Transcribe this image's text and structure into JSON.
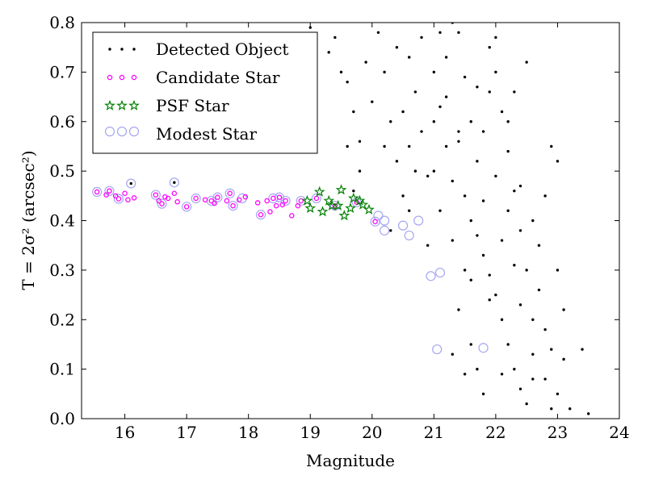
{
  "chart_data": {
    "type": "scatter",
    "xlabel": "Magnitude",
    "ylabel": "T = 2σ² (arcsec²)",
    "xlim": [
      15.3,
      24
    ],
    "ylim": [
      0.0,
      0.8
    ],
    "xticks": [
      16,
      17,
      18,
      19,
      20,
      21,
      22,
      23,
      24
    ],
    "yticks": [
      0.0,
      0.1,
      0.2,
      0.3,
      0.4,
      0.5,
      0.6,
      0.7,
      0.8
    ],
    "grid": false,
    "legend_position": "top-left",
    "colors": {
      "detected": "#000000",
      "candidate": "#ff00ff",
      "psf": "#008000",
      "modest": "#a6a6f2"
    },
    "series": [
      {
        "name": "Detected Object",
        "key": "detected",
        "marker": "dot",
        "points": [
          [
            16.1,
            0.475
          ],
          [
            16.8,
            0.477
          ],
          [
            19.0,
            0.79
          ],
          [
            19.3,
            0.74
          ],
          [
            19.4,
            0.77
          ],
          [
            19.5,
            0.7
          ],
          [
            19.6,
            0.68
          ],
          [
            19.7,
            0.62
          ],
          [
            19.8,
            0.56
          ],
          [
            19.9,
            0.72
          ],
          [
            20.0,
            0.64
          ],
          [
            19.8,
            0.5
          ],
          [
            19.6,
            0.55
          ],
          [
            19.7,
            0.46
          ],
          [
            20.1,
            0.78
          ],
          [
            20.2,
            0.7
          ],
          [
            20.3,
            0.6
          ],
          [
            20.4,
            0.52
          ],
          [
            20.5,
            0.45
          ],
          [
            20.6,
            0.73
          ],
          [
            20.7,
            0.66
          ],
          [
            20.8,
            0.58
          ],
          [
            20.9,
            0.49
          ],
          [
            20.4,
            0.75
          ],
          [
            20.6,
            0.42
          ],
          [
            20.2,
            0.55
          ],
          [
            20.5,
            0.62
          ],
          [
            20.8,
            0.77
          ],
          [
            21.0,
            0.7
          ],
          [
            21.1,
            0.63
          ],
          [
            21.2,
            0.55
          ],
          [
            21.3,
            0.48
          ],
          [
            21.4,
            0.78
          ],
          [
            21.5,
            0.69
          ],
          [
            21.6,
            0.6
          ],
          [
            21.7,
            0.52
          ],
          [
            21.8,
            0.44
          ],
          [
            21.9,
            0.75
          ],
          [
            21.1,
            0.42
          ],
          [
            21.3,
            0.36
          ],
          [
            21.5,
            0.3
          ],
          [
            21.4,
            0.22
          ],
          [
            21.6,
            0.15
          ],
          [
            21.7,
            0.1
          ],
          [
            21.9,
            0.66
          ],
          [
            21.2,
            0.73
          ],
          [
            21.4,
            0.58
          ],
          [
            21.6,
            0.4
          ],
          [
            21.8,
            0.33
          ],
          [
            21.0,
            0.5
          ],
          [
            21.2,
            0.65
          ],
          [
            21.3,
            0.8
          ],
          [
            21.5,
            0.45
          ],
          [
            21.7,
            0.37
          ],
          [
            21.9,
            0.29
          ],
          [
            21.8,
            0.58
          ],
          [
            22.0,
            0.7
          ],
          [
            22.1,
            0.62
          ],
          [
            22.2,
            0.54
          ],
          [
            22.3,
            0.46
          ],
          [
            22.4,
            0.38
          ],
          [
            22.5,
            0.3
          ],
          [
            22.0,
            0.25
          ],
          [
            22.1,
            0.2
          ],
          [
            22.2,
            0.15
          ],
          [
            22.3,
            0.1
          ],
          [
            22.4,
            0.06
          ],
          [
            22.5,
            0.03
          ],
          [
            22.6,
            0.2
          ],
          [
            22.7,
            0.35
          ],
          [
            22.8,
            0.45
          ],
          [
            22.9,
            0.55
          ],
          [
            23.0,
            0.52
          ],
          [
            23.1,
            0.22
          ],
          [
            22.9,
            0.14
          ],
          [
            23.0,
            0.05
          ],
          [
            23.2,
            0.02
          ],
          [
            23.4,
            0.14
          ],
          [
            23.5,
            0.01
          ],
          [
            22.6,
            0.08
          ],
          [
            22.8,
            0.18
          ],
          [
            22.4,
            0.47
          ],
          [
            22.6,
            0.4
          ],
          [
            22.2,
            0.6
          ],
          [
            22.3,
            0.66
          ],
          [
            22.0,
            0.77
          ],
          [
            22.5,
            0.72
          ],
          [
            22.1,
            0.36
          ],
          [
            22.7,
            0.26
          ],
          [
            23.0,
            0.3
          ],
          [
            22.9,
            0.02
          ],
          [
            23.1,
            0.12
          ],
          [
            22.3,
            0.31
          ],
          [
            21.9,
            0.24
          ],
          [
            21.6,
            0.28
          ],
          [
            22.0,
            0.49
          ],
          [
            21.4,
            0.56
          ],
          [
            21.7,
            0.67
          ],
          [
            20.3,
            0.38
          ],
          [
            20.9,
            0.35
          ],
          [
            21.0,
            0.6
          ],
          [
            21.1,
            0.78
          ],
          [
            20.7,
            0.5
          ],
          [
            20.6,
            0.55
          ],
          [
            21.8,
            0.05
          ],
          [
            22.1,
            0.09
          ],
          [
            22.2,
            0.42
          ],
          [
            22.4,
            0.23
          ],
          [
            21.5,
            0.09
          ],
          [
            21.3,
            0.13
          ],
          [
            22.6,
            0.13
          ],
          [
            22.8,
            0.08
          ]
        ]
      },
      {
        "name": "Candidate Star",
        "key": "candidate",
        "marker": "ring",
        "points": [
          [
            15.55,
            0.458
          ],
          [
            15.7,
            0.452
          ],
          [
            15.75,
            0.46
          ],
          [
            15.85,
            0.45
          ],
          [
            15.9,
            0.444
          ],
          [
            16.0,
            0.455
          ],
          [
            16.05,
            0.442
          ],
          [
            16.15,
            0.446
          ],
          [
            16.5,
            0.452
          ],
          [
            16.55,
            0.44
          ],
          [
            16.6,
            0.434
          ],
          [
            16.65,
            0.448
          ],
          [
            16.7,
            0.445
          ],
          [
            16.8,
            0.455
          ],
          [
            16.85,
            0.438
          ],
          [
            17.0,
            0.428
          ],
          [
            17.15,
            0.445
          ],
          [
            17.3,
            0.442
          ],
          [
            17.4,
            0.44
          ],
          [
            17.45,
            0.435
          ],
          [
            17.5,
            0.447
          ],
          [
            17.65,
            0.44
          ],
          [
            17.7,
            0.455
          ],
          [
            17.75,
            0.43
          ],
          [
            17.85,
            0.442
          ],
          [
            17.95,
            0.448
          ],
          [
            18.15,
            0.436
          ],
          [
            18.2,
            0.412
          ],
          [
            18.3,
            0.44
          ],
          [
            18.35,
            0.418
          ],
          [
            18.4,
            0.445
          ],
          [
            18.45,
            0.43
          ],
          [
            18.5,
            0.447
          ],
          [
            18.55,
            0.432
          ],
          [
            18.6,
            0.44
          ],
          [
            18.7,
            0.41
          ],
          [
            18.8,
            0.43
          ],
          [
            18.85,
            0.44
          ],
          [
            19.1,
            0.445
          ],
          [
            19.4,
            0.43
          ],
          [
            19.75,
            0.437
          ],
          [
            20.05,
            0.398
          ]
        ]
      },
      {
        "name": "PSF Star",
        "key": "psf",
        "marker": "star",
        "points": [
          [
            18.95,
            0.44
          ],
          [
            19.0,
            0.425
          ],
          [
            19.15,
            0.458
          ],
          [
            19.2,
            0.418
          ],
          [
            19.3,
            0.44
          ],
          [
            19.35,
            0.43
          ],
          [
            19.45,
            0.43
          ],
          [
            19.5,
            0.462
          ],
          [
            19.55,
            0.41
          ],
          [
            19.65,
            0.425
          ],
          [
            19.7,
            0.445
          ],
          [
            19.8,
            0.44
          ],
          [
            19.85,
            0.432
          ],
          [
            19.95,
            0.422
          ]
        ]
      },
      {
        "name": "Modest Star",
        "key": "modest",
        "marker": "circle",
        "points": [
          [
            15.55,
            0.458
          ],
          [
            15.75,
            0.46
          ],
          [
            15.9,
            0.444
          ],
          [
            16.1,
            0.475
          ],
          [
            16.5,
            0.452
          ],
          [
            16.6,
            0.434
          ],
          [
            16.8,
            0.477
          ],
          [
            17.0,
            0.428
          ],
          [
            17.15,
            0.445
          ],
          [
            17.4,
            0.44
          ],
          [
            17.5,
            0.447
          ],
          [
            17.7,
            0.455
          ],
          [
            17.75,
            0.43
          ],
          [
            17.9,
            0.445
          ],
          [
            18.2,
            0.412
          ],
          [
            18.4,
            0.445
          ],
          [
            18.5,
            0.447
          ],
          [
            18.6,
            0.44
          ],
          [
            18.85,
            0.44
          ],
          [
            19.1,
            0.445
          ],
          [
            19.4,
            0.43
          ],
          [
            19.75,
            0.437
          ],
          [
            20.05,
            0.398
          ],
          [
            20.1,
            0.41
          ],
          [
            20.2,
            0.38
          ],
          [
            20.2,
            0.4
          ],
          [
            20.5,
            0.39
          ],
          [
            20.6,
            0.37
          ],
          [
            20.75,
            0.4
          ],
          [
            20.95,
            0.288
          ],
          [
            21.1,
            0.295
          ],
          [
            21.05,
            0.14
          ],
          [
            21.8,
            0.143
          ]
        ]
      }
    ]
  }
}
